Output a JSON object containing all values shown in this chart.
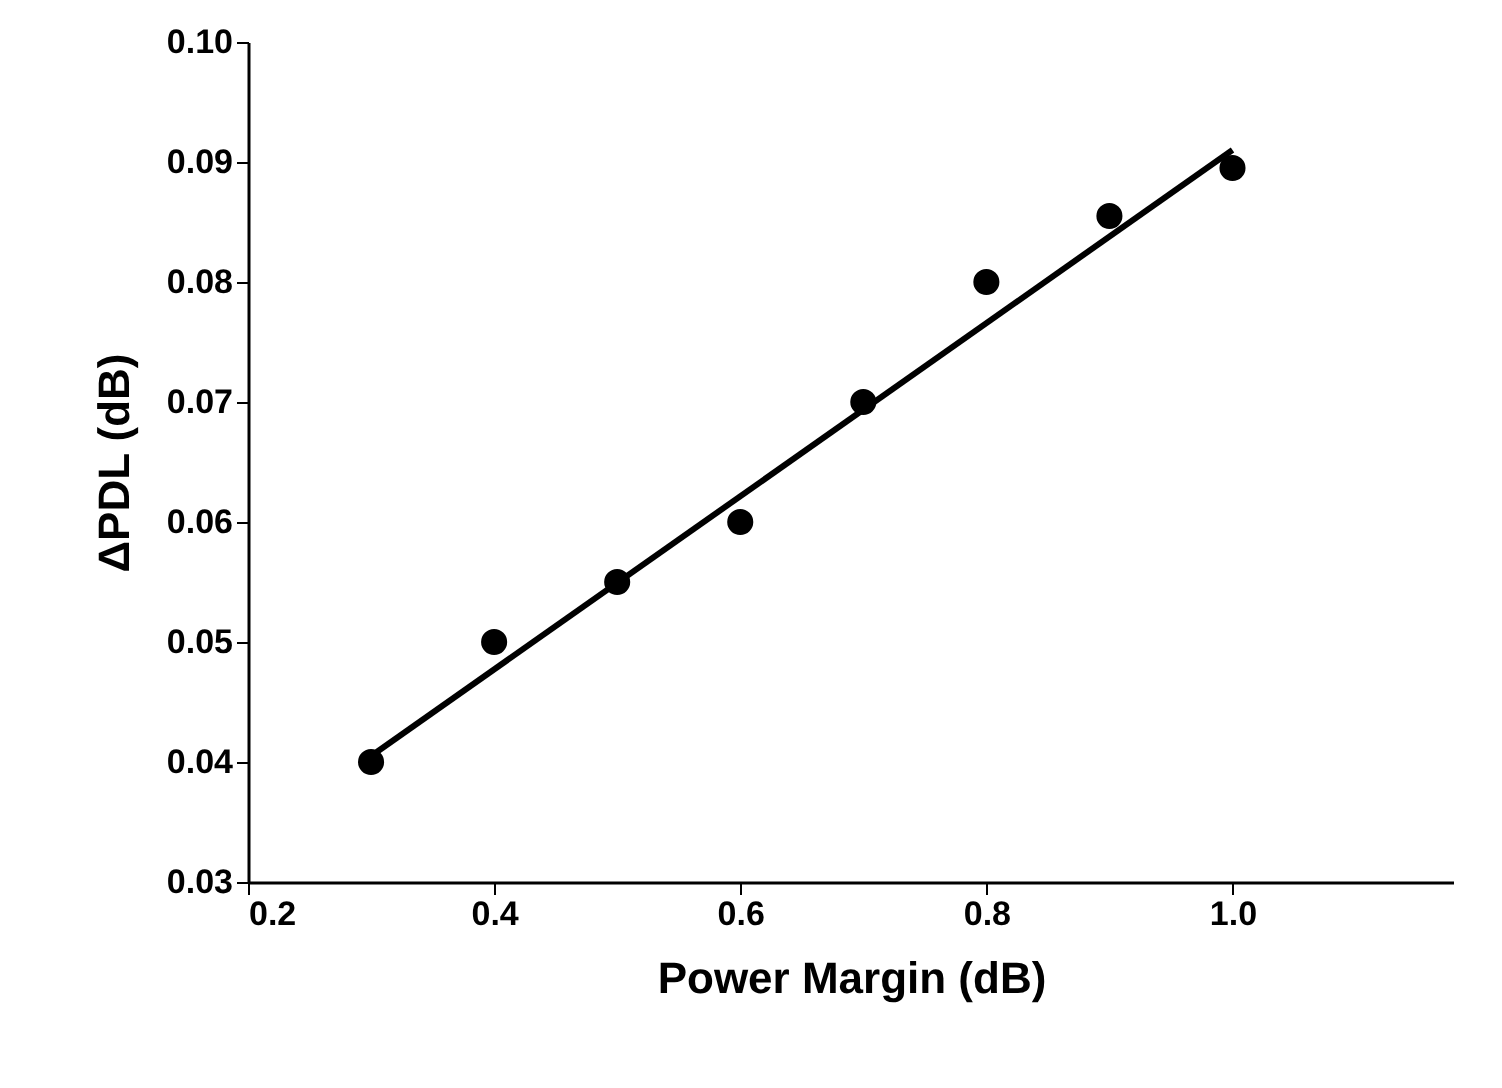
{
  "chart_data": {
    "type": "scatter",
    "xlabel": "Power Margin (dB)",
    "ylabel": "ΔPDL (dB)",
    "x": [
      0.3,
      0.4,
      0.5,
      0.6,
      0.7,
      0.8,
      0.9,
      1.0
    ],
    "series": [
      {
        "color": "#000000",
        "marker": "circle",
        "values": [
          0.04,
          0.05,
          0.055,
          0.06,
          0.07,
          0.08,
          0.0855,
          0.0895
        ]
      },
      {
        "type": "line",
        "color": "#000000",
        "line_style": "solid",
        "x": [
          0.3,
          1.0
        ],
        "values": [
          0.0405,
          0.091
        ]
      }
    ],
    "xlim": [
      0.2,
      1.18
    ],
    "xticks": [
      0.2,
      0.4,
      0.6,
      0.8,
      {
        "value": 1.0,
        "label": "1.0"
      }
    ],
    "ylim": [
      0.03,
      0.1
    ],
    "yticks": [
      0.03,
      0.04,
      0.05,
      0.06,
      0.07,
      0.08,
      0.09,
      {
        "value": 0.1,
        "label": "0.10"
      }
    ],
    "grid": false
  }
}
